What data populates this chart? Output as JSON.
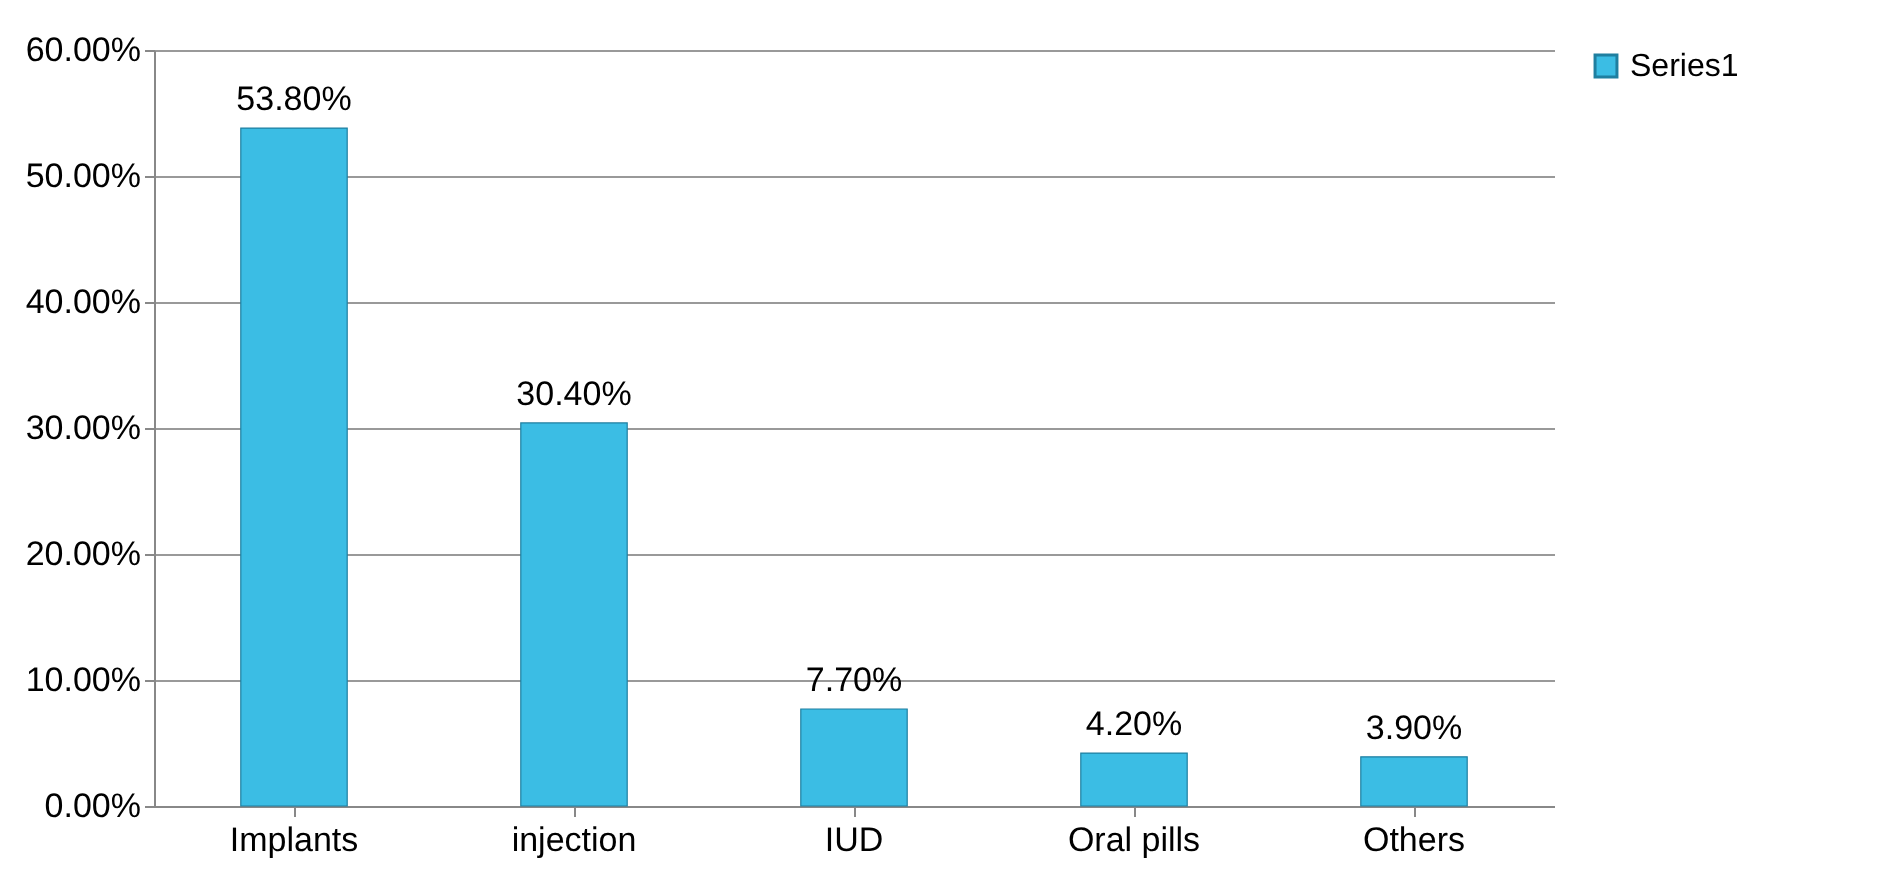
{
  "chart_data": {
    "type": "bar",
    "categories": [
      "Implants",
      "injection",
      "IUD",
      "Oral pills",
      "Others"
    ],
    "series": [
      {
        "name": "Series1",
        "color": "#3bbde4",
        "values": [
          53.8,
          30.4,
          7.7,
          4.2,
          3.9
        ],
        "value_labels": [
          "53.80%",
          "30.40%",
          "7.70%",
          "4.20%",
          "3.90%"
        ]
      }
    ],
    "ylim": [
      0,
      60
    ],
    "yticks": [
      {
        "value": 0,
        "label": "0.00%"
      },
      {
        "value": 10,
        "label": "10.00%"
      },
      {
        "value": 20,
        "label": "20.00%"
      },
      {
        "value": 30,
        "label": "30.00%"
      },
      {
        "value": 40,
        "label": "40.00%"
      },
      {
        "value": 50,
        "label": "50.00%"
      },
      {
        "value": 60,
        "label": "60.00%"
      }
    ],
    "grid": "y",
    "legend": "right"
  }
}
